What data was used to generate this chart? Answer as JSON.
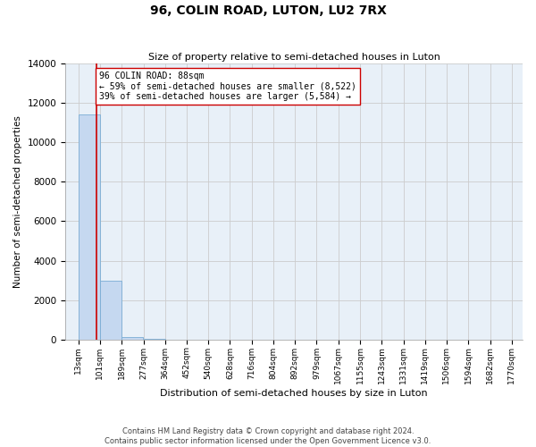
{
  "title": "96, COLIN ROAD, LUTON, LU2 7RX",
  "subtitle": "Size of property relative to semi-detached houses in Luton",
  "xlabel": "Distribution of semi-detached houses by size in Luton",
  "ylabel": "Number of semi-detached properties",
  "property_size": 88,
  "annotation_text_line1": "96 COLIN ROAD: 88sqm",
  "annotation_text_line2": "← 59% of semi-detached houses are smaller (8,522)",
  "annotation_text_line3": "39% of semi-detached houses are larger (5,584) →",
  "bin_edges": [
    13,
    101,
    189,
    277,
    364,
    452,
    540,
    628,
    716,
    804,
    892,
    979,
    1067,
    1155,
    1243,
    1331,
    1419,
    1506,
    1594,
    1682,
    1770
  ],
  "bar_heights": [
    11400,
    3000,
    120,
    20,
    5,
    3,
    2,
    1,
    1,
    1,
    1,
    1,
    0,
    0,
    0,
    0,
    0,
    0,
    0,
    0
  ],
  "bar_color": "#c5d8f0",
  "bar_edge_color": "#7aadd4",
  "red_line_color": "#cc0000",
  "annotation_box_edge_color": "#cc0000",
  "annotation_box_face_color": "#ffffff",
  "grid_color": "#cccccc",
  "background_color": "#e8f0f8",
  "ylim": [
    0,
    14000
  ],
  "yticks": [
    0,
    2000,
    4000,
    6000,
    8000,
    10000,
    12000,
    14000
  ],
  "tick_labels": [
    "13sqm",
    "101sqm",
    "189sqm",
    "277sqm",
    "364sqm",
    "452sqm",
    "540sqm",
    "628sqm",
    "716sqm",
    "804sqm",
    "892sqm",
    "979sqm",
    "1067sqm",
    "1155sqm",
    "1243sqm",
    "1331sqm",
    "1419sqm",
    "1506sqm",
    "1594sqm",
    "1682sqm",
    "1770sqm"
  ],
  "footer_line1": "Contains HM Land Registry data © Crown copyright and database right 2024.",
  "footer_line2": "Contains public sector information licensed under the Open Government Licence v3.0.",
  "figsize": [
    6.0,
    5.0
  ],
  "dpi": 100
}
